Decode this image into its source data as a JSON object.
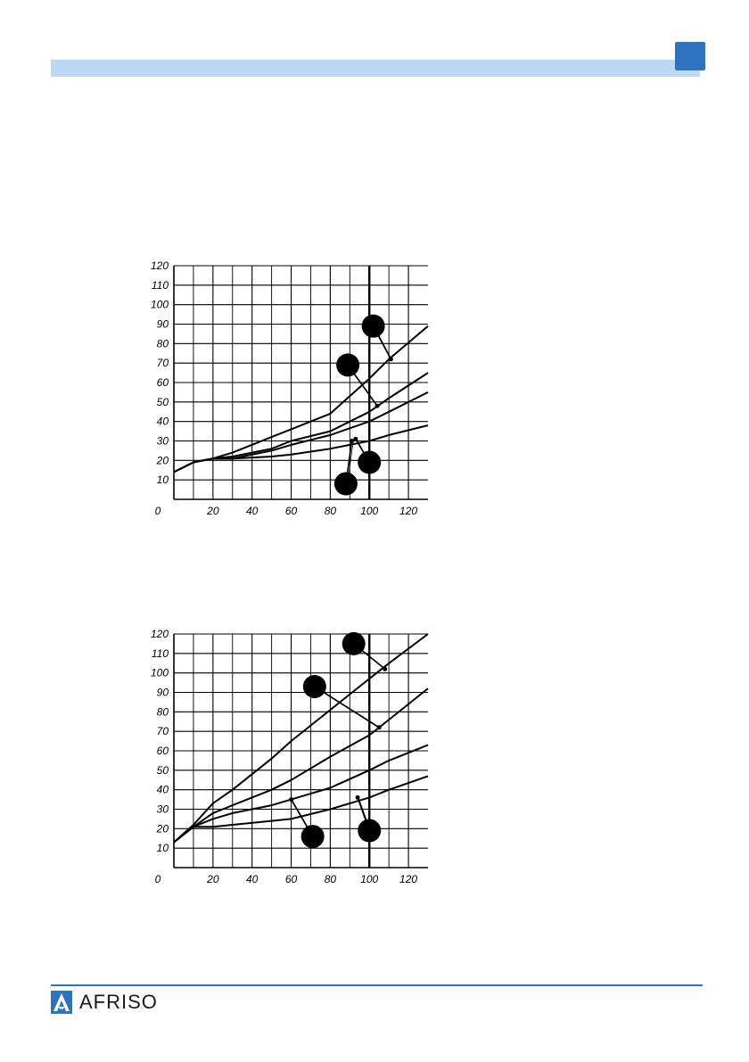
{
  "colors": {
    "header_bar": "#bcd9f3",
    "header_tab": "#2e73bf",
    "footer_line": "#2e73bf",
    "logo_blue": "#2e73bf",
    "curve": "#000000",
    "grid": "#000000"
  },
  "footer": {
    "logo_icon": "afriso-triangle-logo",
    "brand": "AFRISO"
  },
  "chart_data": [
    {
      "type": "line",
      "title": "",
      "xlabel": "",
      "ylabel": "",
      "xlim": [
        0,
        130
      ],
      "ylim": [
        0,
        120
      ],
      "x_ticks": [
        0,
        20,
        40,
        60,
        80,
        100,
        120
      ],
      "y_ticks": [
        10,
        20,
        30,
        40,
        50,
        60,
        70,
        80,
        90,
        100,
        110,
        120
      ],
      "grid": true,
      "highlight_x": 100,
      "series": [
        {
          "x": [
            0,
            10,
            20,
            30,
            50,
            60,
            80,
            100,
            110,
            130
          ],
          "y": [
            14,
            19,
            21,
            21,
            22,
            23,
            26,
            30,
            33,
            38
          ]
        },
        {
          "x": [
            0,
            10,
            20,
            30,
            50,
            60,
            80,
            100,
            110,
            130
          ],
          "y": [
            14,
            19,
            21,
            21,
            25,
            28,
            33,
            40,
            45,
            55
          ]
        },
        {
          "x": [
            0,
            10,
            20,
            30,
            50,
            60,
            80,
            100,
            110,
            130
          ],
          "y": [
            14,
            19,
            21,
            22,
            26,
            30,
            35,
            45,
            52,
            65
          ]
        },
        {
          "x": [
            0,
            10,
            20,
            30,
            50,
            60,
            80,
            100,
            110,
            130
          ],
          "y": [
            14,
            19,
            21,
            24,
            32,
            36,
            44,
            62,
            72,
            89
          ]
        }
      ],
      "markers": [
        {
          "label_x": 88,
          "label_y": 8,
          "point_x": 91,
          "point_y": 30
        },
        {
          "label_x": 100,
          "label_y": 19,
          "point_x": 93,
          "point_y": 31
        },
        {
          "label_x": 89,
          "label_y": 69,
          "point_x": 104,
          "point_y": 48
        },
        {
          "label_x": 102,
          "label_y": 89,
          "point_x": 111,
          "point_y": 72
        }
      ]
    },
    {
      "type": "line",
      "title": "",
      "xlabel": "",
      "ylabel": "",
      "xlim": [
        0,
        130
      ],
      "ylim": [
        0,
        120
      ],
      "x_ticks": [
        0,
        20,
        40,
        60,
        80,
        100,
        120
      ],
      "y_ticks": [
        10,
        20,
        30,
        40,
        50,
        60,
        70,
        80,
        90,
        100,
        110,
        120
      ],
      "grid": true,
      "highlight_x": 100,
      "series": [
        {
          "x": [
            0,
            10,
            20,
            30,
            50,
            60,
            80,
            100,
            110,
            130
          ],
          "y": [
            13,
            21,
            21,
            22,
            24,
            25,
            30,
            36,
            40,
            47
          ]
        },
        {
          "x": [
            0,
            10,
            20,
            30,
            50,
            60,
            80,
            100,
            110,
            130
          ],
          "y": [
            13,
            21,
            25,
            28,
            32,
            35,
            41,
            50,
            55,
            63
          ]
        },
        {
          "x": [
            0,
            10,
            20,
            30,
            50,
            60,
            80,
            100,
            110,
            130
          ],
          "y": [
            13,
            21,
            28,
            32,
            40,
            45,
            57,
            68,
            76,
            92
          ]
        },
        {
          "x": [
            0,
            10,
            20,
            30,
            50,
            60,
            80,
            100,
            110,
            130
          ],
          "y": [
            13,
            22,
            33,
            40,
            56,
            65,
            81,
            97,
            105,
            120
          ]
        }
      ],
      "markers": [
        {
          "label_x": 71,
          "label_y": 16,
          "point_x": 60,
          "point_y": 35
        },
        {
          "label_x": 100,
          "label_y": 19,
          "point_x": 94,
          "point_y": 36
        },
        {
          "label_x": 72,
          "label_y": 93,
          "point_x": 105,
          "point_y": 72
        },
        {
          "label_x": 92,
          "label_y": 115,
          "point_x": 108,
          "point_y": 102
        }
      ]
    }
  ]
}
